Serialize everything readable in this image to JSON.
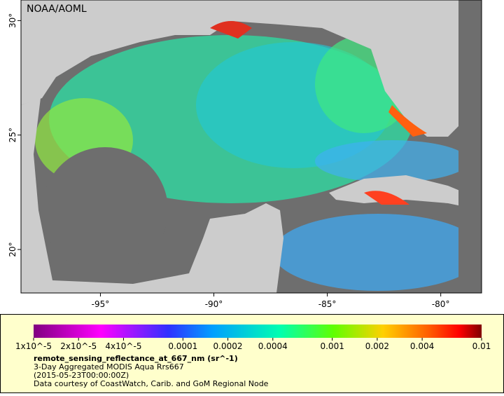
{
  "map": {
    "credit": "NOAA/AOML",
    "lon_range": [
      -98.5,
      -78.2
    ],
    "lat_range": [
      18.1,
      30.9
    ],
    "lon_ticks": [
      {
        "value": -95,
        "label": "-95°"
      },
      {
        "value": -90,
        "label": "-90°"
      },
      {
        "value": -85,
        "label": "-85°"
      },
      {
        "value": -80,
        "label": "-80°"
      }
    ],
    "lat_ticks": [
      {
        "value": 20,
        "label": "20°"
      },
      {
        "value": 25,
        "label": "25°"
      },
      {
        "value": 30,
        "label": "30°"
      }
    ]
  },
  "legend": {
    "log_scale": true,
    "range": [
      1e-05,
      0.01
    ],
    "ticks": [
      {
        "value": 1e-05,
        "label": "1x10^-5"
      },
      {
        "value": 2e-05,
        "label": "2x10^-5"
      },
      {
        "value": 4e-05,
        "label": "4x10^-5"
      },
      {
        "value": 0.0001,
        "label": "0.0001"
      },
      {
        "value": 0.0002,
        "label": "0.0002"
      },
      {
        "value": 0.0004,
        "label": "0.0004"
      },
      {
        "value": 0.001,
        "label": "0.001"
      },
      {
        "value": 0.002,
        "label": "0.002"
      },
      {
        "value": 0.004,
        "label": "0.004"
      },
      {
        "value": 0.01,
        "label": "0.01"
      }
    ],
    "variable": "remote_sensing_reflectance_at_667_nm (sr^-1)",
    "dataset": "3-Day Aggregated MODIS Aqua Rrs667",
    "time": "(2015-05-23T00:00:00Z)",
    "source": "Data courtesy of CoastWatch, Carib. and GoM Regional Node"
  }
}
